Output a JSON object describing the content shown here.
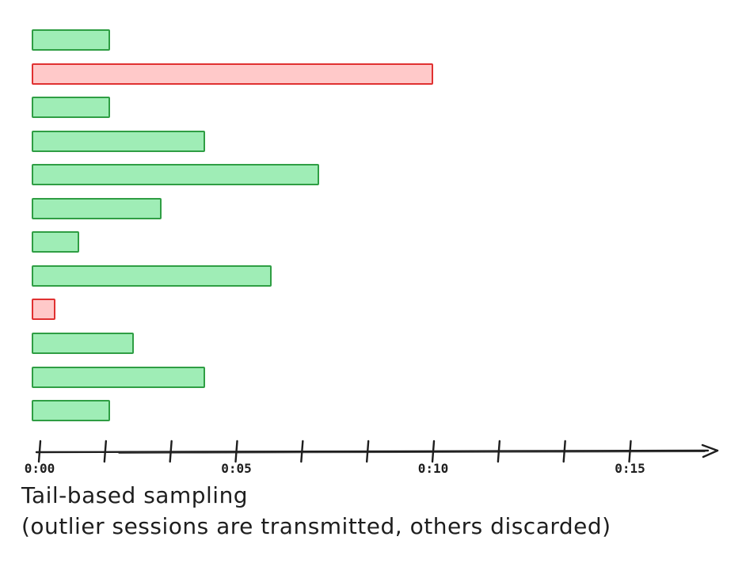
{
  "chart_data": {
    "type": "bar",
    "orientation": "horizontal",
    "title": "Tail-based sampling",
    "subtitle": "(outlier sessions are transmitted, others discarded)",
    "unit": "minutes",
    "sessions": [
      {
        "duration_min": 2.0,
        "transmitted": false
      },
      {
        "duration_min": 10.2,
        "transmitted": true
      },
      {
        "duration_min": 2.0,
        "transmitted": false
      },
      {
        "duration_min": 4.4,
        "transmitted": false
      },
      {
        "duration_min": 7.3,
        "transmitted": false
      },
      {
        "duration_min": 3.3,
        "transmitted": false
      },
      {
        "duration_min": 1.2,
        "transmitted": false
      },
      {
        "duration_min": 6.1,
        "transmitted": false
      },
      {
        "duration_min": 0.6,
        "transmitted": true
      },
      {
        "duration_min": 2.6,
        "transmitted": false
      },
      {
        "duration_min": 4.4,
        "transmitted": false
      },
      {
        "duration_min": 2.0,
        "transmitted": false
      }
    ],
    "axis": {
      "tick_labels": [
        "0:00",
        "0:05",
        "0:10",
        "0:15"
      ],
      "labeled_tick_minutes": [
        0,
        5,
        10,
        15
      ],
      "minor_tick_step_minutes": 1.6667,
      "xlim_minutes": [
        0,
        17.3
      ],
      "grid": false
    },
    "legend": {
      "shown": false,
      "green_meaning": "discarded session",
      "red_meaning": "transmitted outlier session"
    },
    "colors": {
      "discarded_fill": "#9fedb6",
      "discarded_border": "#2f9e44",
      "transmitted_fill": "#ffc9c9",
      "transmitted_border": "#e03131",
      "axis": "#1e1e1e",
      "text": "#1e1e1e"
    }
  },
  "caption": {
    "lines": [
      "Tail-based sampling",
      "(outlier sessions are transmitted, others discarded)"
    ]
  }
}
